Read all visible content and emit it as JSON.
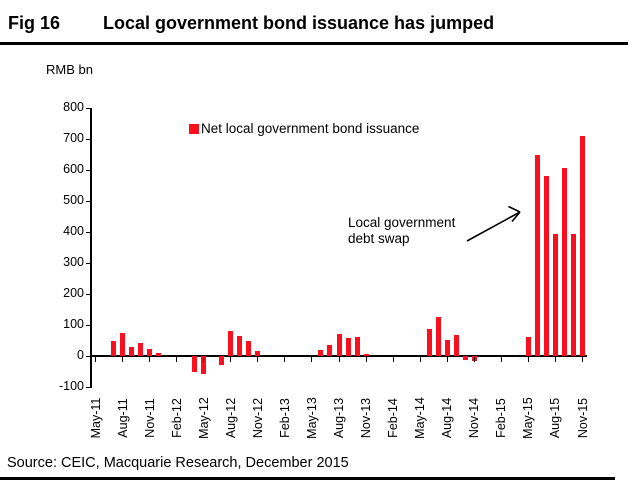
{
  "figure": {
    "fig_label": "Fig 16",
    "title": "Local government bond issuance has jumped"
  },
  "chart": {
    "unit_label": "RMB bn",
    "legend_label": "Net local government bond issuance",
    "annotation": {
      "line1": "Local government",
      "line2": "debt swap"
    }
  },
  "chart_data": {
    "type": "bar",
    "title": "Local government bond issuance has jumped",
    "ylabel": "RMB bn",
    "xlabel": "",
    "ylim": [
      -100,
      800
    ],
    "yticks": [
      800,
      700,
      600,
      500,
      400,
      300,
      200,
      100,
      0,
      -100
    ],
    "grid": false,
    "legend": [
      "Net local government bond issuance"
    ],
    "legend_position": "top-center",
    "bar_color": "#fa0f1e",
    "annotation": "Local government debt swap",
    "x_tick_every": 3,
    "x": [
      "May-11",
      "Jun-11",
      "Jul-11",
      "Aug-11",
      "Sep-11",
      "Oct-11",
      "Nov-11",
      "Dec-11",
      "Jan-12",
      "Feb-12",
      "Mar-12",
      "Apr-12",
      "May-12",
      "Jun-12",
      "Jul-12",
      "Aug-12",
      "Sep-12",
      "Oct-12",
      "Nov-12",
      "Dec-12",
      "Jan-13",
      "Feb-13",
      "Mar-13",
      "Apr-13",
      "May-13",
      "Jun-13",
      "Jul-13",
      "Aug-13",
      "Sep-13",
      "Oct-13",
      "Nov-13",
      "Dec-13",
      "Jan-14",
      "Feb-14",
      "Mar-14",
      "Apr-14",
      "May-14",
      "Jun-14",
      "Jul-14",
      "Aug-14",
      "Sep-14",
      "Oct-14",
      "Nov-14",
      "Dec-14",
      "Jan-15",
      "Feb-15",
      "Mar-15",
      "Apr-15",
      "May-15",
      "Jun-15",
      "Jul-15",
      "Aug-15",
      "Sep-15",
      "Oct-15",
      "Nov-15"
    ],
    "values": [
      0,
      0,
      47,
      75,
      28,
      43,
      21,
      9,
      0,
      0,
      0,
      -53,
      -57,
      0,
      -29,
      82,
      64,
      50,
      16,
      0,
      0,
      0,
      0,
      0,
      0,
      19,
      35,
      70,
      57,
      62,
      6,
      0,
      0,
      0,
      0,
      0,
      0,
      86,
      127,
      51,
      68,
      -13,
      -15,
      0,
      0,
      0,
      0,
      0,
      60,
      650,
      580,
      395,
      605,
      395,
      710
    ]
  },
  "footer": {
    "source": "Source: CEIC, Macquarie Research, December 2015"
  }
}
